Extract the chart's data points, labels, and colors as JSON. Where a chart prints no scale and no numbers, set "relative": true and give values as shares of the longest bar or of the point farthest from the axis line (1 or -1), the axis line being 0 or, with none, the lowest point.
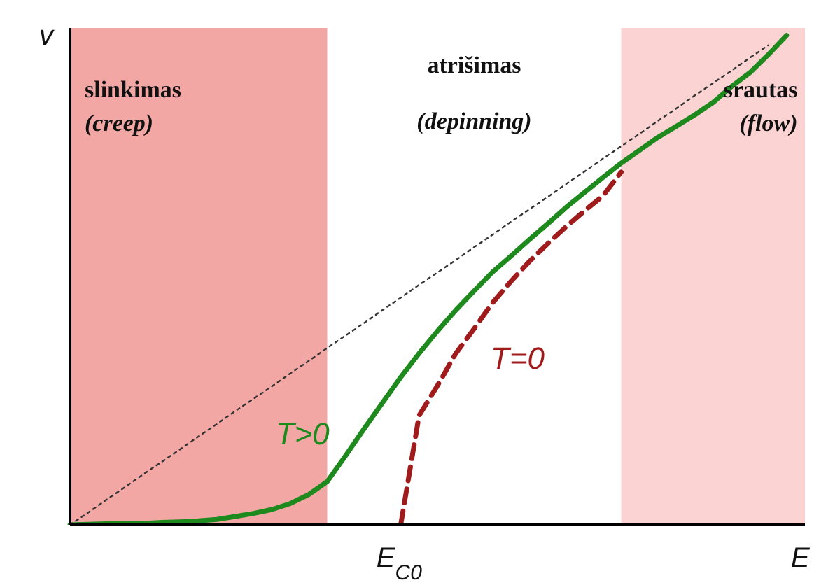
{
  "chart_data": {
    "type": "line",
    "relative": true,
    "xlabel": "E",
    "ylabel": "v",
    "categories": [
      null,
      null,
      null,
      null,
      null,
      null,
      null,
      null,
      null,
      null,
      null,
      null,
      null,
      null,
      null,
      null,
      null,
      null,
      null,
      null,
      null,
      null,
      null,
      null,
      null,
      null,
      null,
      null,
      null,
      null,
      null,
      null,
      null,
      null,
      null,
      null,
      null,
      null,
      null,
      null,
      null
    ],
    "annotations": [
      "slinkimas (creep)",
      "atrišimas (depinning)",
      "srautas (flow)",
      "E$_{C0}$"
    ],
    "legend": false,
    "grid": false,
    "series": [
      {
        "type": "area",
        "color": "#f2a7a5",
        "values": [
          1,
          1,
          1,
          1,
          1,
          1,
          1,
          1,
          1,
          1,
          1,
          1,
          1,
          1,
          1,
          null,
          null,
          null,
          null,
          null,
          null,
          null,
          null,
          null,
          null,
          null,
          null,
          null,
          null,
          null,
          null,
          null,
          null,
          null,
          null,
          null,
          null,
          null,
          null,
          null,
          null
        ]
      },
      {
        "type": "area",
        "color": "#fad3d2",
        "values": [
          null,
          null,
          null,
          null,
          null,
          null,
          null,
          null,
          null,
          null,
          null,
          null,
          null,
          null,
          null,
          null,
          null,
          null,
          null,
          null,
          null,
          null,
          null,
          null,
          null,
          null,
          null,
          null,
          null,
          null,
          1,
          1,
          1,
          1,
          1,
          1,
          1,
          1,
          1,
          1,
          1
        ]
      },
      {
        "name": "T>0",
        "color": "#1e8a1e",
        "line_style": "solid",
        "values": [
          0,
          0.001,
          0.002,
          0.002,
          0.003,
          0.005,
          0.006,
          0.008,
          0.011,
          0.017,
          0.023,
          0.031,
          0.043,
          0.061,
          0.087,
          0.139,
          0.193,
          0.245,
          0.297,
          0.345,
          0.39,
          0.432,
          0.471,
          0.509,
          0.541,
          0.574,
          0.606,
          0.639,
          0.669,
          0.699,
          0.728,
          0.754,
          0.78,
          0.802,
          0.825,
          0.85,
          0.882,
          0.91,
          0.946,
          0.985,
          null
        ]
      },
      {
        "name": "T=0",
        "color": "#a01c1c",
        "line_style": "dashed",
        "values": [
          null,
          null,
          null,
          null,
          null,
          null,
          null,
          null,
          null,
          null,
          null,
          null,
          null,
          null,
          null,
          null,
          null,
          null,
          0,
          0.22,
          0.28,
          0.345,
          0.395,
          0.447,
          0.49,
          0.53,
          0.566,
          0.6,
          0.632,
          0.662,
          0.71,
          null,
          null,
          null,
          null,
          null,
          null,
          null,
          null,
          null,
          null
        ]
      },
      {
        "color": "#333333",
        "line_style": "dotted",
        "values": [
          0,
          0.025,
          0.051,
          0.076,
          0.102,
          0.127,
          0.152,
          0.178,
          0.203,
          0.229,
          0.254,
          0.279,
          0.305,
          0.33,
          0.356,
          0.381,
          0.406,
          0.432,
          0.457,
          0.483,
          0.508,
          0.533,
          0.559,
          0.584,
          0.61,
          0.635,
          0.66,
          0.686,
          0.711,
          0.737,
          0.762,
          0.787,
          0.813,
          0.838,
          0.864,
          0.889,
          0.914,
          0.94,
          0.965,
          null,
          null
        ]
      }
    ]
  }
}
